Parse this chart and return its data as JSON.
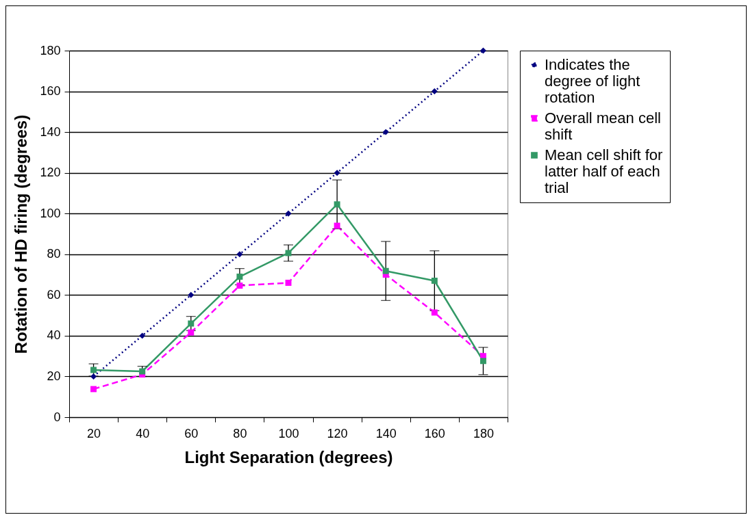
{
  "chart_data": {
    "type": "line",
    "xlabel": "Light Separation (degrees)",
    "ylabel": "Rotation of HD firing (degrees)",
    "categories": [
      "20",
      "40",
      "60",
      "80",
      "100",
      "120",
      "140",
      "160",
      "180"
    ],
    "series": [
      {
        "name": "Indicates  the degree of light rotation",
        "color": "#000080",
        "marker": "diamond",
        "line_style": "dotted",
        "values": [
          20,
          40,
          60,
          80,
          100,
          120,
          140,
          160,
          180
        ]
      },
      {
        "name": "Overall mean cell shift",
        "color": "#ff00ff",
        "marker": "square",
        "line_style": "dashed",
        "values": [
          13.8,
          21,
          41.6,
          64.6,
          66,
          94,
          70,
          51.4,
          30
        ]
      },
      {
        "name": "Mean cell shift for latter half of each trial",
        "color": "#339966",
        "marker": "square",
        "line_style": "solid",
        "values": [
          23.2,
          22.5,
          46,
          69,
          80.6,
          104.5,
          71.8,
          67,
          27.6
        ],
        "errors": [
          3,
          2.5,
          3.5,
          4,
          4,
          12,
          14.5,
          14.7,
          6.7
        ]
      }
    ],
    "ylim": [
      0,
      180
    ],
    "yticks": [
      0,
      20,
      40,
      60,
      80,
      100,
      120,
      140,
      160,
      180
    ],
    "grid": "y",
    "legend": "right"
  }
}
